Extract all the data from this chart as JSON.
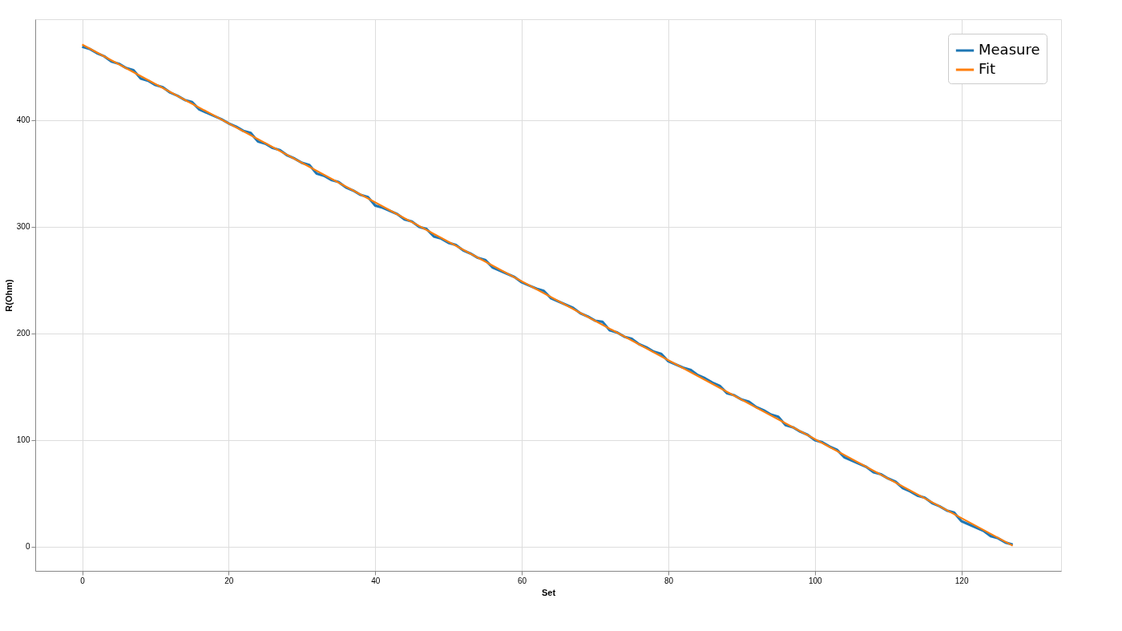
{
  "chart_data": {
    "type": "line",
    "xlabel": "Set",
    "ylabel": "R(Ohm)",
    "x": [
      0,
      1,
      2,
      3,
      4,
      5,
      6,
      7,
      8,
      9,
      10,
      11,
      12,
      13,
      14,
      15,
      16,
      17,
      18,
      19,
      20,
      21,
      22,
      23,
      24,
      25,
      26,
      27,
      28,
      29,
      30,
      31,
      32,
      33,
      34,
      35,
      36,
      37,
      38,
      39,
      40,
      41,
      42,
      43,
      44,
      45,
      46,
      47,
      48,
      49,
      50,
      51,
      52,
      53,
      54,
      55,
      56,
      57,
      58,
      59,
      60,
      61,
      62,
      63,
      64,
      65,
      66,
      67,
      68,
      69,
      70,
      71,
      72,
      73,
      74,
      75,
      76,
      77,
      78,
      79,
      80,
      81,
      82,
      83,
      84,
      85,
      86,
      87,
      88,
      89,
      90,
      91,
      92,
      93,
      94,
      95,
      96,
      97,
      98,
      99,
      100,
      101,
      102,
      103,
      104,
      105,
      106,
      107,
      108,
      109,
      110,
      111,
      112,
      113,
      114,
      115,
      116,
      117,
      118,
      119,
      120,
      121,
      122,
      123,
      124,
      125,
      126,
      127
    ],
    "series": [
      {
        "name": "Measure",
        "color": "#1f77b4",
        "values": [
          469,
          467,
          463,
          460,
          455,
          453,
          449,
          447,
          439,
          437,
          433,
          431,
          426,
          423,
          419,
          417,
          410,
          407,
          404,
          401,
          397,
          394,
          390,
          388,
          380,
          378,
          374,
          372,
          367,
          364,
          360,
          358,
          350,
          348,
          344,
          342,
          337,
          334,
          330,
          328,
          320,
          318,
          315,
          312,
          307,
          305,
          300,
          298,
          291,
          289,
          285,
          283,
          278,
          275,
          271,
          269,
          262,
          259,
          256,
          253,
          248,
          245,
          242,
          240,
          233,
          230,
          227,
          224,
          219,
          216,
          212,
          211,
          203,
          201,
          197,
          195,
          190,
          187,
          183,
          181,
          174,
          171,
          168,
          166,
          161,
          158,
          154,
          151,
          144,
          142,
          138,
          136,
          131,
          128,
          124,
          122,
          114,
          112,
          108,
          105,
          100,
          98,
          94,
          91,
          84,
          81,
          78,
          75,
          70,
          68,
          64,
          61,
          55,
          52,
          48,
          46,
          41,
          38,
          34,
          32,
          24,
          21,
          18,
          15,
          10,
          8,
          4,
          2
        ]
      },
      {
        "name": "Fit",
        "color": "#ff7f0e",
        "type": "line",
        "x": [
          0,
          127
        ],
        "values": [
          471,
          1
        ]
      }
    ],
    "xlim": [
      -6.4,
      133.6
    ],
    "xticks": [
      0,
      20,
      40,
      60,
      80,
      100,
      120
    ],
    "ylim": [
      -22.6,
      494.7
    ],
    "yticks": [
      0,
      100,
      200,
      300,
      400
    ],
    "grid": true,
    "legend": "top right",
    "marker": "none",
    "line_style": "solid"
  }
}
